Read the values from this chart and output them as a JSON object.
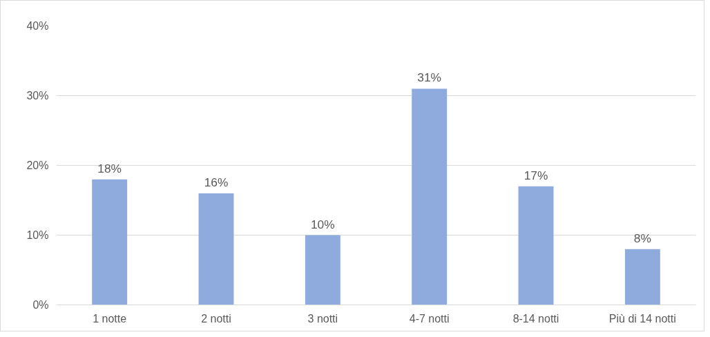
{
  "chart_data": {
    "type": "bar",
    "categories": [
      "1 notte",
      "2 notti",
      "3 notti",
      "4-7 notti",
      "8-14 notti",
      "Più di 14 notti"
    ],
    "values": [
      18,
      16,
      10,
      31,
      17,
      8
    ],
    "value_labels": [
      "18%",
      "16%",
      "10%",
      "31%",
      "17%",
      "8%"
    ],
    "color": "#8faadc",
    "ylim": [
      0,
      40
    ],
    "yticks": [
      {
        "value": 0,
        "label": "0%"
      },
      {
        "value": 10,
        "label": "10%"
      },
      {
        "value": 20,
        "label": "20%"
      },
      {
        "value": 30,
        "label": "30%"
      },
      {
        "value": 40,
        "label": "40%"
      }
    ],
    "grid": "y"
  }
}
